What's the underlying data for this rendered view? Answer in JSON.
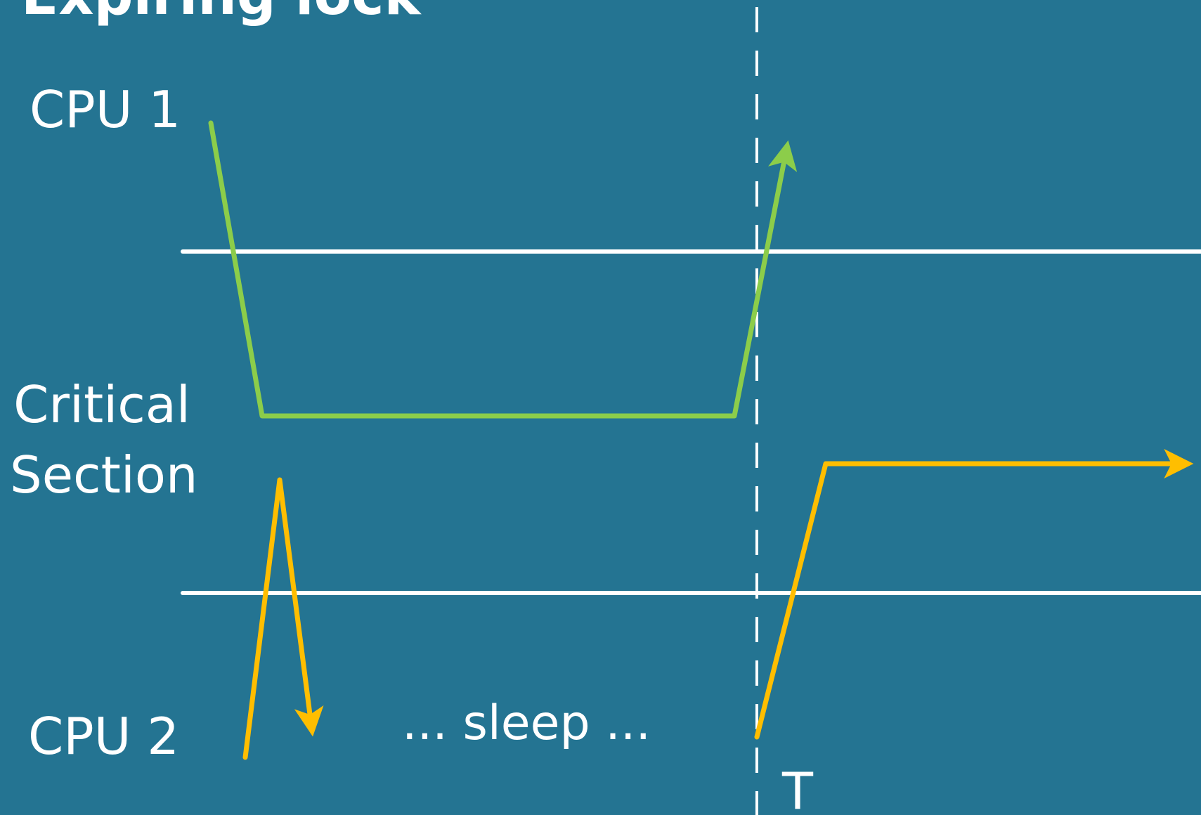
{
  "title": "Expiring lock",
  "labels": {
    "cpu1": "CPU 1",
    "critical_section": "Critical Section",
    "cpu2": "CPU 2",
    "sleep": "... sleep ...",
    "time_marker": "T"
  },
  "colors": {
    "background": "#247492",
    "boundary_lines": "#ffffff",
    "cpu1_path": "#8ccd4a",
    "cpu2_path": "#ffbe00",
    "deadline_line": "#ffffff"
  }
}
